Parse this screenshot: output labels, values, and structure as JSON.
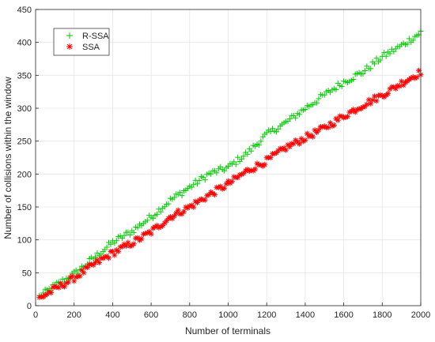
{
  "chart_data": {
    "type": "scatter",
    "title": "",
    "xlabel": "Number of terminals",
    "ylabel": "Number of collisions within the window",
    "xlim": [
      0,
      2000
    ],
    "ylim": [
      0,
      450
    ],
    "xticks": [
      0,
      200,
      400,
      600,
      800,
      1000,
      1200,
      1400,
      1600,
      1800,
      2000
    ],
    "yticks": [
      0,
      50,
      100,
      150,
      200,
      250,
      300,
      350,
      400,
      450
    ],
    "grid": true,
    "legend_position": "top-left",
    "series": [
      {
        "name": "R-SSA",
        "marker": "plus",
        "color": "#00cc00",
        "x": [
          0,
          100,
          200,
          300,
          400,
          500,
          600,
          700,
          800,
          900,
          1000,
          1100,
          1200,
          1300,
          1400,
          1500,
          1600,
          1700,
          1800,
          1900,
          2000
        ],
        "y": [
          10,
          30,
          48,
          72,
          96,
          113,
          135,
          160,
          180,
          200,
          210,
          232,
          260,
          278,
          300,
          320,
          340,
          355,
          378,
          395,
          415
        ]
      },
      {
        "name": "SSA",
        "marker": "star",
        "color": "#ff0000",
        "x": [
          0,
          100,
          200,
          300,
          400,
          500,
          600,
          700,
          800,
          900,
          1000,
          1100,
          1200,
          1300,
          1400,
          1500,
          1600,
          1700,
          1800,
          1900,
          2000
        ],
        "y": [
          8,
          25,
          42,
          62,
          80,
          95,
          112,
          135,
          150,
          168,
          185,
          205,
          220,
          240,
          255,
          270,
          288,
          305,
          320,
          338,
          355
        ]
      }
    ]
  }
}
